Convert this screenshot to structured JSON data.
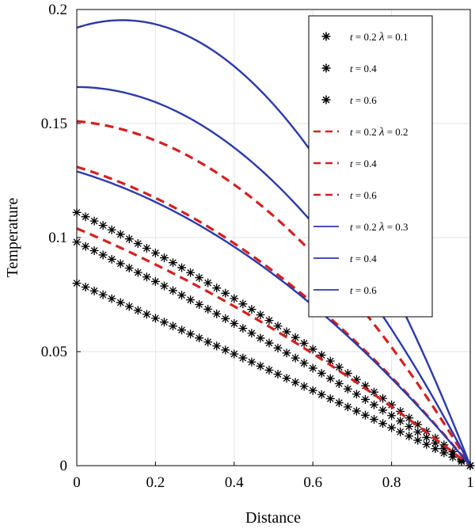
{
  "chart_data": {
    "type": "line",
    "title": "",
    "xlabel": "Distance",
    "ylabel": "Temperature",
    "xlim": [
      0,
      1
    ],
    "ylim": [
      0,
      0.2
    ],
    "xticks": [
      0,
      0.2,
      0.4,
      0.6,
      0.8,
      1
    ],
    "yticks": [
      0,
      0.05,
      0.1,
      0.15,
      0.2
    ],
    "xtick_labels": [
      "0",
      "0.2",
      "0.4",
      "0.6",
      "0.8",
      "1"
    ],
    "ytick_labels": [
      "0",
      "0.05",
      "0.1",
      "0.15",
      "0.2"
    ],
    "grid": true,
    "legend_position": "top-right",
    "series": [
      {
        "t": "0.2",
        "lambda": "0.1",
        "style": "star",
        "color": "#000000",
        "y0": 0.111,
        "curve": 0.25
      },
      {
        "t": "0.4",
        "style": "star",
        "color": "#000000",
        "y0": 0.098,
        "curve": 0.15
      },
      {
        "t": "0.6",
        "style": "star",
        "color": "#000000",
        "y0": 0.08,
        "curve": 0.05
      },
      {
        "t": "0.2",
        "lambda": "0.2",
        "style": "dashed",
        "color": "#d42020",
        "y0": 0.151,
        "curve": 0.9
      },
      {
        "t": "0.4",
        "style": "dashed",
        "color": "#d42020",
        "y0": 0.131,
        "curve": 0.6
      },
      {
        "t": "0.6",
        "style": "dashed",
        "color": "#d42020",
        "y0": 0.104,
        "curve": 0.3
      },
      {
        "t": "0.2",
        "lambda": "0.3",
        "style": "solid",
        "color": "#2b3aa8",
        "y0": 0.192,
        "curve": 1.3
      },
      {
        "t": "0.4",
        "style": "solid",
        "color": "#2b3aa8",
        "y0": 0.166,
        "curve": 1.0
      },
      {
        "t": "0.6",
        "style": "solid",
        "color": "#2b3aa8",
        "y0": 0.129,
        "curve": 0.6
      }
    ]
  },
  "legend_entries": [
    {
      "t_text": "t",
      "eq_text": " = 0.2 ",
      "lambda_text": "λ",
      "lambda_eq": " = 0.1"
    },
    {
      "t_text": "t",
      "eq_text": " = 0.4"
    },
    {
      "t_text": "t",
      "eq_text": " = 0.6"
    },
    {
      "t_text": "t",
      "eq_text": " = 0.2 ",
      "lambda_text": "λ",
      "lambda_eq": " = 0.2"
    },
    {
      "t_text": "t",
      "eq_text": " = 0.4"
    },
    {
      "t_text": "t",
      "eq_text": " = 0.6"
    },
    {
      "t_text": "t",
      "eq_text": " = 0.2 ",
      "lambda_text": "λ",
      "lambda_eq": " = 0.3"
    },
    {
      "t_text": "t",
      "eq_text": " = 0.4"
    },
    {
      "t_text": "t",
      "eq_text": " = 0.6"
    }
  ]
}
